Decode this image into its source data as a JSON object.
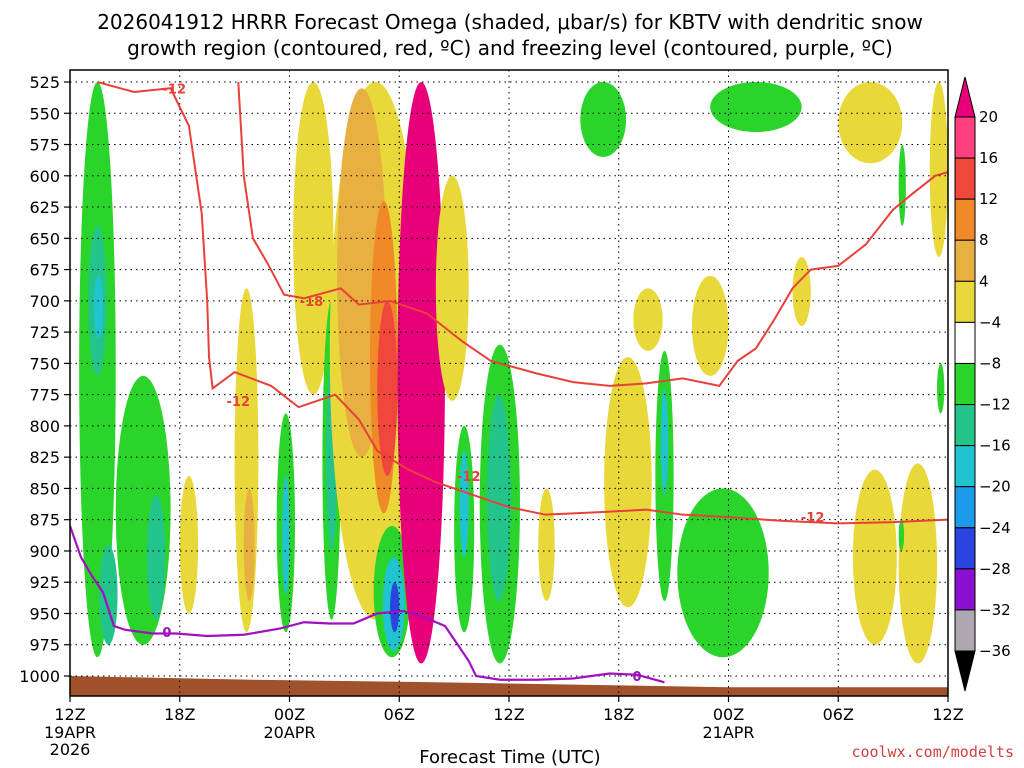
{
  "chart_data": {
    "type": "heatmap",
    "title_line1": "2026041912 HRRR Forecast Omega (shaded, μbar/s) for KBTV with dendritic snow",
    "title_line2": "growth region (contoured, red, ºC) and freezing level (contoured, purple, ºC)",
    "xlabel": "Forecast Time (UTC)",
    "credit": "coolwx.com/modelts",
    "x_hours": [
      0,
      6,
      12,
      18,
      24,
      30,
      36,
      42,
      48
    ],
    "x_ticks": [
      {
        "hour": 0,
        "label": "12Z",
        "sub1": "19APR",
        "sub2": "2026"
      },
      {
        "hour": 6,
        "label": "18Z",
        "sub1": "",
        "sub2": ""
      },
      {
        "hour": 12,
        "label": "00Z",
        "sub1": "20APR",
        "sub2": ""
      },
      {
        "hour": 18,
        "label": "06Z",
        "sub1": "",
        "sub2": ""
      },
      {
        "hour": 24,
        "label": "12Z",
        "sub1": "",
        "sub2": ""
      },
      {
        "hour": 30,
        "label": "18Z",
        "sub1": "",
        "sub2": ""
      },
      {
        "hour": 36,
        "label": "00Z",
        "sub1": "21APR",
        "sub2": ""
      },
      {
        "hour": 42,
        "label": "06Z",
        "sub1": "",
        "sub2": ""
      },
      {
        "hour": 48,
        "label": "12Z",
        "sub1": "",
        "sub2": ""
      }
    ],
    "y_levels": [
      "525",
      "550",
      "575",
      "600",
      "625",
      "650",
      "675",
      "700",
      "725",
      "750",
      "775",
      "800",
      "825",
      "850",
      "875",
      "900",
      "925",
      "950",
      "975",
      "1000"
    ],
    "y_range_hpa": [
      525,
      1000
    ],
    "colorbar": {
      "labels": [
        "20",
        "16",
        "12",
        "8",
        "4",
        "−4",
        "−8",
        "−12",
        "−16",
        "−20",
        "−24",
        "−28",
        "−32",
        "−36"
      ],
      "colors": [
        "#ff3f7f",
        "#f0463c",
        "#f08a28",
        "#e8b040",
        "#e8d83a",
        "#ffffff",
        "#2ad42a",
        "#23c48a",
        "#20c4d0",
        "#1a9ae8",
        "#2a44e0",
        "#8a10d0",
        "#b0a8b0"
      ],
      "top_color": "#e8007a",
      "bottom_color": "#000000"
    },
    "omega_regions": [
      {
        "level": "-8",
        "h0": 0.5,
        "h1": 2.5,
        "p0": 525,
        "p1": 985
      },
      {
        "level": "-8",
        "h0": 2.5,
        "h1": 5.5,
        "p0": 760,
        "p1": 975
      },
      {
        "level": "-12",
        "h0": 1.0,
        "h1": 2.0,
        "p0": 640,
        "p1": 760
      },
      {
        "level": "-16",
        "h0": 1.3,
        "h1": 1.8,
        "p0": 680,
        "p1": 730
      },
      {
        "level": "-12",
        "h0": 1.6,
        "h1": 2.6,
        "p0": 895,
        "p1": 975
      },
      {
        "level": "-12",
        "h0": 4.2,
        "h1": 5.2,
        "p0": 855,
        "p1": 955
      },
      {
        "level": "4",
        "h0": 6.0,
        "h1": 7.0,
        "p0": 840,
        "p1": 950
      },
      {
        "level": "4",
        "h0": 9.0,
        "h1": 10.3,
        "p0": 690,
        "p1": 965
      },
      {
        "level": "8",
        "h0": 9.5,
        "h1": 10.1,
        "p0": 850,
        "p1": 940
      },
      {
        "level": "-8",
        "h0": 11.3,
        "h1": 12.3,
        "p0": 790,
        "p1": 965
      },
      {
        "level": "-16",
        "h0": 11.6,
        "h1": 12.0,
        "p0": 840,
        "p1": 935
      },
      {
        "level": "4",
        "h0": 12.2,
        "h1": 14.4,
        "p0": 525,
        "p1": 775
      },
      {
        "level": "-8",
        "h0": 13.8,
        "h1": 14.8,
        "p0": 700,
        "p1": 955
      },
      {
        "level": "-12",
        "h0": 14.0,
        "h1": 14.6,
        "p0": 750,
        "p1": 900
      },
      {
        "level": "4",
        "h0": 14.2,
        "h1": 19.2,
        "p0": 525,
        "p1": 955
      },
      {
        "level": "8",
        "h0": 14.6,
        "h1": 17.3,
        "p0": 530,
        "p1": 825
      },
      {
        "level": "12",
        "h0": 16.4,
        "h1": 17.9,
        "p0": 620,
        "p1": 870
      },
      {
        "level": "16",
        "h0": 16.8,
        "h1": 17.9,
        "p0": 700,
        "p1": 840
      },
      {
        "level": "-8",
        "h0": 16.6,
        "h1": 18.6,
        "p0": 880,
        "p1": 985
      },
      {
        "level": "-16",
        "h0": 17.1,
        "h1": 18.3,
        "p0": 905,
        "p1": 980
      },
      {
        "level": "-24",
        "h0": 17.5,
        "h1": 18.0,
        "p0": 925,
        "p1": 965
      },
      {
        "level": "20",
        "h0": 17.9,
        "h1": 20.5,
        "p0": 525,
        "p1": 990
      },
      {
        "level": "4",
        "h0": 20.0,
        "h1": 21.8,
        "p0": 600,
        "p1": 780
      },
      {
        "level": "-8",
        "h0": 21.0,
        "h1": 22.1,
        "p0": 800,
        "p1": 965
      },
      {
        "level": "-16",
        "h0": 21.3,
        "h1": 21.8,
        "p0": 820,
        "p1": 905
      },
      {
        "level": "-8",
        "h0": 22.4,
        "h1": 24.6,
        "p0": 735,
        "p1": 990
      },
      {
        "level": "-12",
        "h0": 22.8,
        "h1": 24.1,
        "p0": 775,
        "p1": 940
      },
      {
        "level": "4",
        "h0": 25.6,
        "h1": 26.5,
        "p0": 850,
        "p1": 940
      },
      {
        "level": "-8",
        "h0": 27.9,
        "h1": 30.4,
        "p0": 525,
        "p1": 585
      },
      {
        "level": "4",
        "h0": 29.2,
        "h1": 31.8,
        "p0": 745,
        "p1": 945
      },
      {
        "level": "-8",
        "h0": 32.0,
        "h1": 33.0,
        "p0": 740,
        "p1": 940
      },
      {
        "level": "-16",
        "h0": 32.3,
        "h1": 32.7,
        "p0": 770,
        "p1": 855
      },
      {
        "level": "4",
        "h0": 30.8,
        "h1": 32.4,
        "p0": 690,
        "p1": 740
      },
      {
        "level": "4",
        "h0": 34.0,
        "h1": 36.0,
        "p0": 680,
        "p1": 760
      },
      {
        "level": "-8",
        "h0": 33.2,
        "h1": 38.2,
        "p0": 850,
        "p1": 985
      },
      {
        "level": "-8",
        "h0": 35.0,
        "h1": 40.0,
        "p0": 525,
        "p1": 565
      },
      {
        "level": "4",
        "h0": 39.5,
        "h1": 40.5,
        "p0": 665,
        "p1": 720
      },
      {
        "level": "4",
        "h0": 42.0,
        "h1": 45.5,
        "p0": 525,
        "p1": 590
      },
      {
        "level": "4",
        "h0": 42.8,
        "h1": 45.2,
        "p0": 835,
        "p1": 975
      },
      {
        "level": "-8",
        "h0": 45.3,
        "h1": 45.7,
        "p0": 575,
        "p1": 640
      },
      {
        "level": "4",
        "h0": 45.3,
        "h1": 47.4,
        "p0": 830,
        "p1": 990
      },
      {
        "level": "-8",
        "h0": 45.3,
        "h1": 45.6,
        "p0": 875,
        "p1": 900
      },
      {
        "level": "4",
        "h0": 47.0,
        "h1": 48.0,
        "p0": 525,
        "p1": 665
      },
      {
        "level": "-8",
        "h0": 47.4,
        "h1": 47.8,
        "p0": 750,
        "p1": 790
      }
    ],
    "dgz_contours": [
      {
        "label": "-12",
        "points": [
          [
            1.5,
            525
          ],
          [
            3.5,
            533
          ],
          [
            5.5,
            530
          ],
          [
            6.5,
            560
          ],
          [
            7.2,
            630
          ],
          [
            7.5,
            700
          ],
          [
            7.6,
            745
          ],
          [
            7.8,
            770
          ],
          [
            9,
            757
          ],
          [
            11,
            768
          ],
          [
            12.5,
            785
          ],
          [
            14.5,
            775
          ],
          [
            15.8,
            795
          ],
          [
            16.8,
            820
          ],
          [
            18.5,
            835
          ],
          [
            20,
            845
          ],
          [
            22,
            855
          ],
          [
            24,
            865
          ],
          [
            26,
            871
          ],
          [
            29,
            869
          ],
          [
            31.5,
            867
          ],
          [
            33.5,
            871
          ],
          [
            36,
            873
          ],
          [
            39,
            876
          ],
          [
            42,
            878
          ],
          [
            45,
            877
          ],
          [
            48,
            875
          ]
        ]
      },
      {
        "label": "-18",
        "points": [
          [
            9.2,
            525
          ],
          [
            9.5,
            600
          ],
          [
            10,
            650
          ],
          [
            10.8,
            670
          ],
          [
            11.7,
            695
          ],
          [
            12.8,
            698
          ],
          [
            14.8,
            690
          ],
          [
            15.8,
            703
          ],
          [
            17.5,
            700
          ],
          [
            19.5,
            710
          ],
          [
            21.5,
            733
          ],
          [
            23,
            748
          ],
          [
            25.5,
            758
          ],
          [
            27.5,
            765
          ],
          [
            29.5,
            768
          ],
          [
            31.5,
            766
          ],
          [
            33.5,
            762
          ],
          [
            35.5,
            768
          ],
          [
            36.5,
            748
          ],
          [
            37.5,
            738
          ],
          [
            38.5,
            715
          ],
          [
            39.5,
            690
          ],
          [
            40.5,
            675
          ],
          [
            42,
            672
          ],
          [
            43.5,
            655
          ],
          [
            45,
            627
          ],
          [
            46,
            615
          ],
          [
            47.3,
            600
          ],
          [
            48,
            597
          ]
        ]
      }
    ],
    "dgz_labels": [
      {
        "text": "-12",
        "hour": 5.7,
        "p": 530
      },
      {
        "text": "-18",
        "hour": 13.2,
        "p": 700
      },
      {
        "text": "-12",
        "hour": 9.2,
        "p": 780
      },
      {
        "text": "-12",
        "hour": 21.8,
        "p": 840
      },
      {
        "text": "-12",
        "hour": 40.6,
        "p": 873
      }
    ],
    "freezing_contour": {
      "label": "0",
      "points": [
        [
          0,
          880
        ],
        [
          0.6,
          905
        ],
        [
          1.2,
          920
        ],
        [
          1.8,
          933
        ],
        [
          2.4,
          960
        ],
        [
          3,
          963
        ],
        [
          4.5,
          966
        ],
        [
          5.8,
          966
        ],
        [
          7.5,
          968
        ],
        [
          9.5,
          967
        ],
        [
          11.5,
          962
        ],
        [
          12.8,
          957
        ],
        [
          14.2,
          958
        ],
        [
          15.5,
          958
        ],
        [
          16.8,
          950
        ],
        [
          18.2,
          948
        ],
        [
          19.2,
          952
        ],
        [
          20.5,
          960
        ],
        [
          21.2,
          975
        ],
        [
          21.8,
          988
        ],
        [
          22.2,
          1000
        ],
        [
          23.5,
          1003
        ],
        [
          25.5,
          1003
        ],
        [
          27.5,
          1002
        ],
        [
          29.5,
          998
        ],
        [
          31,
          999
        ],
        [
          32.5,
          1005
        ]
      ]
    },
    "freezing_labels": [
      {
        "text": "0",
        "hour": 5.3,
        "p": 965
      },
      {
        "text": "0",
        "hour": 31.0,
        "p": 1000
      }
    ],
    "terrain": {
      "color": "#a0522d",
      "points": [
        [
          0,
          1000
        ],
        [
          10,
          1003
        ],
        [
          20,
          1005
        ],
        [
          28,
          1007
        ],
        [
          36,
          1009
        ],
        [
          48,
          1009
        ]
      ]
    }
  }
}
